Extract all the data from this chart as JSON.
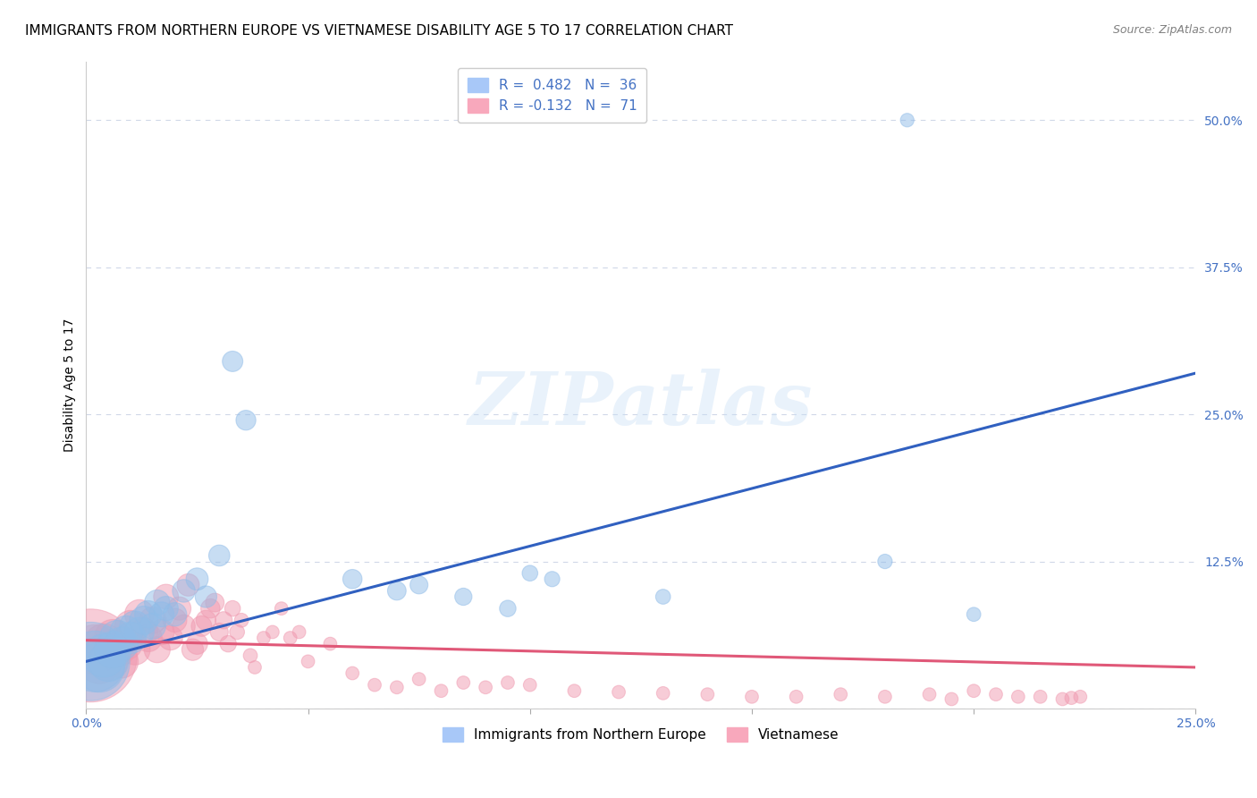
{
  "title": "IMMIGRANTS FROM NORTHERN EUROPE VS VIETNAMESE DISABILITY AGE 5 TO 17 CORRELATION CHART",
  "source": "Source: ZipAtlas.com",
  "ylabel": "Disability Age 5 to 17",
  "xlim": [
    0.0,
    0.25
  ],
  "ylim": [
    0.0,
    0.55
  ],
  "x_ticks": [
    0.0,
    0.05,
    0.1,
    0.15,
    0.2,
    0.25
  ],
  "x_tick_labels": [
    "0.0%",
    "",
    "",
    "",
    "",
    "25.0%"
  ],
  "y_ticks": [
    0.0,
    0.125,
    0.25,
    0.375,
    0.5
  ],
  "y_tick_labels": [
    "",
    "12.5%",
    "25.0%",
    "37.5%",
    "50.0%"
  ],
  "blue_scatter_x": [
    0.001,
    0.002,
    0.003,
    0.004,
    0.005,
    0.006,
    0.007,
    0.008,
    0.009,
    0.01,
    0.011,
    0.012,
    0.013,
    0.014,
    0.015,
    0.016,
    0.017,
    0.018,
    0.02,
    0.022,
    0.025,
    0.027,
    0.03,
    0.033,
    0.036,
    0.06,
    0.07,
    0.075,
    0.085,
    0.095,
    0.1,
    0.105,
    0.13,
    0.18,
    0.2,
    0.185
  ],
  "blue_scatter_y": [
    0.04,
    0.04,
    0.035,
    0.045,
    0.04,
    0.05,
    0.06,
    0.055,
    0.065,
    0.06,
    0.07,
    0.065,
    0.075,
    0.08,
    0.07,
    0.09,
    0.08,
    0.085,
    0.08,
    0.1,
    0.11,
    0.095,
    0.13,
    0.295,
    0.245,
    0.11,
    0.1,
    0.105,
    0.095,
    0.085,
    0.115,
    0.11,
    0.095,
    0.125,
    0.08,
    0.5
  ],
  "blue_scatter_sizes": [
    500,
    300,
    200,
    150,
    130,
    110,
    100,
    90,
    85,
    80,
    75,
    70,
    65,
    60,
    55,
    52,
    50,
    48,
    45,
    42,
    40,
    38,
    36,
    34,
    32,
    30,
    28,
    26,
    24,
    22,
    20,
    19,
    18,
    17,
    16,
    15
  ],
  "pink_scatter_x": [
    0.001,
    0.002,
    0.003,
    0.004,
    0.005,
    0.006,
    0.007,
    0.008,
    0.009,
    0.01,
    0.011,
    0.012,
    0.013,
    0.014,
    0.015,
    0.016,
    0.017,
    0.018,
    0.019,
    0.02,
    0.021,
    0.022,
    0.023,
    0.024,
    0.025,
    0.026,
    0.027,
    0.028,
    0.029,
    0.03,
    0.031,
    0.032,
    0.033,
    0.034,
    0.035,
    0.037,
    0.038,
    0.04,
    0.042,
    0.044,
    0.046,
    0.048,
    0.05,
    0.055,
    0.06,
    0.065,
    0.07,
    0.075,
    0.08,
    0.085,
    0.09,
    0.095,
    0.1,
    0.11,
    0.12,
    0.13,
    0.14,
    0.15,
    0.16,
    0.17,
    0.18,
    0.19,
    0.195,
    0.2,
    0.205,
    0.21,
    0.215,
    0.22,
    0.222,
    0.224
  ],
  "pink_scatter_y": [
    0.045,
    0.05,
    0.04,
    0.055,
    0.04,
    0.06,
    0.05,
    0.04,
    0.055,
    0.07,
    0.05,
    0.08,
    0.065,
    0.06,
    0.075,
    0.05,
    0.065,
    0.095,
    0.06,
    0.075,
    0.085,
    0.07,
    0.105,
    0.05,
    0.055,
    0.07,
    0.075,
    0.085,
    0.09,
    0.065,
    0.075,
    0.055,
    0.085,
    0.065,
    0.075,
    0.045,
    0.035,
    0.06,
    0.065,
    0.085,
    0.06,
    0.065,
    0.04,
    0.055,
    0.03,
    0.02,
    0.018,
    0.025,
    0.015,
    0.022,
    0.018,
    0.022,
    0.02,
    0.015,
    0.014,
    0.013,
    0.012,
    0.01,
    0.01,
    0.012,
    0.01,
    0.012,
    0.008,
    0.015,
    0.012,
    0.01,
    0.01,
    0.008,
    0.009,
    0.01
  ],
  "pink_scatter_sizes": [
    700,
    200,
    160,
    130,
    120,
    110,
    100,
    90,
    85,
    80,
    75,
    70,
    65,
    62,
    58,
    55,
    52,
    50,
    48,
    46,
    44,
    42,
    40,
    38,
    36,
    34,
    32,
    30,
    28,
    26,
    24,
    22,
    20,
    18,
    16,
    16,
    14,
    14,
    14,
    14,
    14,
    14,
    14,
    14,
    14,
    14,
    14,
    14,
    14,
    14,
    14,
    14,
    14,
    14,
    14,
    14,
    14,
    14,
    14,
    14,
    14,
    14,
    14,
    14,
    14,
    14,
    14,
    14,
    14,
    14
  ],
  "blue_line_x": [
    0.0,
    0.25
  ],
  "blue_line_y": [
    0.04,
    0.285
  ],
  "pink_line_x": [
    0.0,
    0.25
  ],
  "pink_line_y": [
    0.058,
    0.035
  ],
  "blue_scatter_color": "#90bce8",
  "pink_scatter_color": "#f09ab0",
  "blue_line_color": "#3060c0",
  "pink_line_color": "#e05878",
  "grid_color": "#d0d8e8",
  "background_color": "#ffffff",
  "title_fontsize": 11,
  "axis_label_fontsize": 10,
  "tick_fontsize": 10,
  "watermark": "ZIPatlas"
}
